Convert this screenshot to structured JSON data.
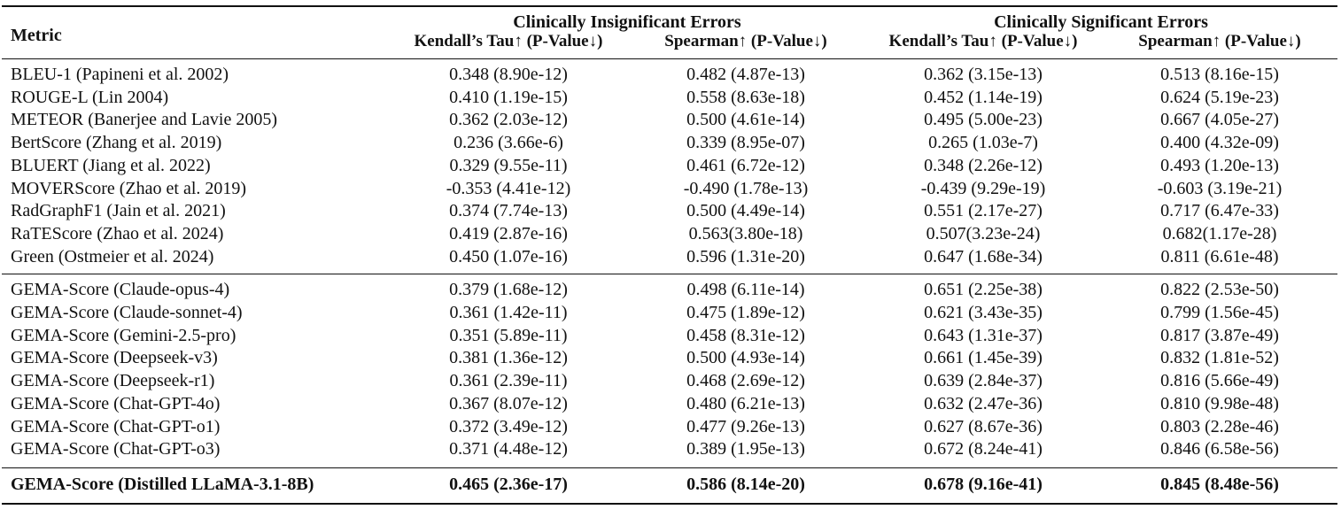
{
  "table": {
    "metric_header": "Metric",
    "groups": [
      {
        "title": "Clinically Insignificant Errors",
        "columns": [
          "Kendall’s Tau↑ (P-Value↓)",
          "Spearman↑ (P-Value↓)"
        ]
      },
      {
        "title": "Clinically Significant Errors",
        "columns": [
          "Kendall’s Tau↑ (P-Value↓)",
          "Spearman↑ (P-Value↓)"
        ]
      }
    ],
    "baseline_rows": [
      {
        "metric": "BLEU-1 (Papineni et al. 2002)",
        "ci_kt": "0.348 (8.90e-12)",
        "ci_sp": "0.482 (4.87e-13)",
        "cs_kt": "0.362 (3.15e-13)",
        "cs_sp": "0.513 (8.16e-15)"
      },
      {
        "metric": "ROUGE-L (Lin 2004)",
        "ci_kt": "0.410 (1.19e-15)",
        "ci_sp": "0.558 (8.63e-18)",
        "cs_kt": "0.452 (1.14e-19)",
        "cs_sp": "0.624 (5.19e-23)"
      },
      {
        "metric": "METEOR (Banerjee and Lavie 2005)",
        "ci_kt": "0.362 (2.03e-12)",
        "ci_sp": "0.500 (4.61e-14)",
        "cs_kt": "0.495 (5.00e-23)",
        "cs_sp": "0.667 (4.05e-27)"
      },
      {
        "metric": "BertScore (Zhang et al. 2019)",
        "ci_kt": "0.236 (3.66e-6)",
        "ci_sp": "0.339 (8.95e-07)",
        "cs_kt": "0.265 (1.03e-7)",
        "cs_sp": "0.400 (4.32e-09)"
      },
      {
        "metric": "BLUERT (Jiang et al. 2022)",
        "ci_kt": "0.329 (9.55e-11)",
        "ci_sp": "0.461 (6.72e-12)",
        "cs_kt": "0.348 (2.26e-12)",
        "cs_sp": "0.493 (1.20e-13)"
      },
      {
        "metric": "MOVERScore (Zhao et al. 2019)",
        "ci_kt": "-0.353 (4.41e-12)",
        "ci_sp": "-0.490 (1.78e-13)",
        "cs_kt": "-0.439 (9.29e-19)",
        "cs_sp": "-0.603 (3.19e-21)"
      },
      {
        "metric": "RadGraphF1 (Jain et al. 2021)",
        "ci_kt": "0.374 (7.74e-13)",
        "ci_sp": "0.500 (4.49e-14)",
        "cs_kt": "0.551 (2.17e-27)",
        "cs_sp": "0.717 (6.47e-33)"
      },
      {
        "metric": "RaTEScore (Zhao et al. 2024)",
        "ci_kt": "0.419 (2.87e-16)",
        "ci_sp": "0.563(3.80e-18)",
        "cs_kt": "0.507(3.23e-24)",
        "cs_sp": "0.682(1.17e-28)"
      },
      {
        "metric": "Green (Ostmeier et al. 2024)",
        "ci_kt": "0.450 (1.07e-16)",
        "ci_sp": "0.596 (1.31e-20)",
        "cs_kt": "0.647 (1.68e-34)",
        "cs_sp": "0.811 (6.61e-48)"
      }
    ],
    "gema_rows": [
      {
        "metric": "GEMA-Score (Claude-opus-4)",
        "ci_kt": "0.379 (1.68e-12)",
        "ci_sp": "0.498 (6.11e-14)",
        "cs_kt": "0.651 (2.25e-38)",
        "cs_sp": "0.822 (2.53e-50)"
      },
      {
        "metric": "GEMA-Score (Claude-sonnet-4)",
        "ci_kt": "0.361 (1.42e-11)",
        "ci_sp": "0.475 (1.89e-12)",
        "cs_kt": "0.621 (3.43e-35)",
        "cs_sp": "0.799 (1.56e-45)"
      },
      {
        "metric": "GEMA-Score (Gemini-2.5-pro)",
        "ci_kt": "0.351 (5.89e-11)",
        "ci_sp": "0.458 (8.31e-12)",
        "cs_kt": "0.643 (1.31e-37)",
        "cs_sp": "0.817 (3.87e-49)"
      },
      {
        "metric": "GEMA-Score (Deepseek-v3)",
        "ci_kt": "0.381 (1.36e-12)",
        "ci_sp": "0.500 (4.93e-14)",
        "cs_kt": "0.661 (1.45e-39)",
        "cs_sp": "0.832 (1.81e-52)"
      },
      {
        "metric": "GEMA-Score (Deepseek-r1)",
        "ci_kt": "0.361 (2.39e-11)",
        "ci_sp": "0.468 (2.69e-12)",
        "cs_kt": "0.639 (2.84e-37)",
        "cs_sp": "0.816 (5.66e-49)"
      },
      {
        "metric": "GEMA-Score (Chat-GPT-4o)",
        "ci_kt": "0.367 (8.07e-12)",
        "ci_sp": "0.480 (6.21e-13)",
        "cs_kt": "0.632 (2.47e-36)",
        "cs_sp": "0.810 (9.98e-48)"
      },
      {
        "metric": "GEMA-Score (Chat-GPT-o1)",
        "ci_kt": "0.372 (3.49e-12)",
        "ci_sp": "0.477 (9.26e-13)",
        "cs_kt": "0.627 (8.67e-36)",
        "cs_sp": "0.803 (2.28e-46)"
      },
      {
        "metric": "GEMA-Score (Chat-GPT-o3)",
        "ci_kt": "0.371 (4.48e-12)",
        "ci_sp": "0.389 (1.95e-13)",
        "cs_kt": "0.672 (8.24e-41)",
        "cs_sp": "0.846 (6.58e-56)"
      }
    ],
    "best_row": {
      "metric": "GEMA-Score (Distilled LLaMA-3.1-8B)",
      "ci_kt": "0.465 (2.36e-17)",
      "ci_sp": "0.586 (8.14e-20)",
      "cs_kt": "0.678 (9.16e-41)",
      "cs_sp": "0.845 (8.48e-56)"
    }
  }
}
